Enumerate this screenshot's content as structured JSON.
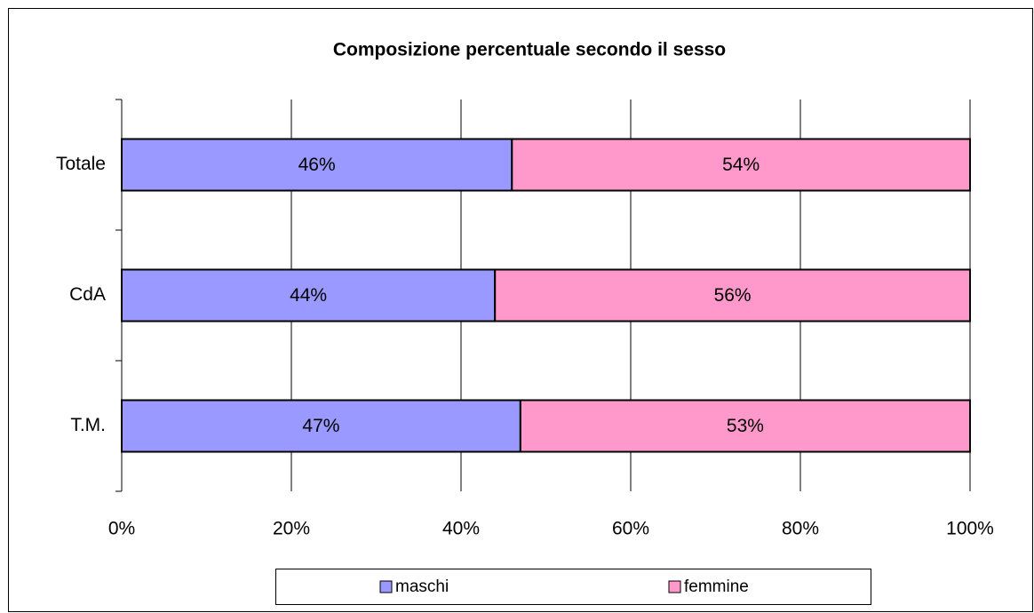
{
  "chart_data": {
    "type": "stacked_barh",
    "title": "Composizione percentuale secondo il sesso",
    "categories": [
      "Totale",
      "CdA",
      "T.M."
    ],
    "series": [
      {
        "name": "maschi",
        "color": "#9999ff",
        "values": [
          46,
          44,
          47
        ],
        "value_labels": [
          "46%",
          "44%",
          "47%"
        ]
      },
      {
        "name": "femmine",
        "color": "#ff99cc",
        "values": [
          54,
          56,
          53
        ],
        "value_labels": [
          "54%",
          "56%",
          "53%"
        ]
      }
    ],
    "xlim": [
      0,
      100
    ],
    "xticks": [
      {
        "value": 0,
        "label": "0%"
      },
      {
        "value": 20,
        "label": "20%"
      },
      {
        "value": 40,
        "label": "40%"
      },
      {
        "value": 60,
        "label": "60%"
      },
      {
        "value": 80,
        "label": "80%"
      },
      {
        "value": 100,
        "label": "100%"
      }
    ],
    "grid": true,
    "legend": "bottom"
  }
}
